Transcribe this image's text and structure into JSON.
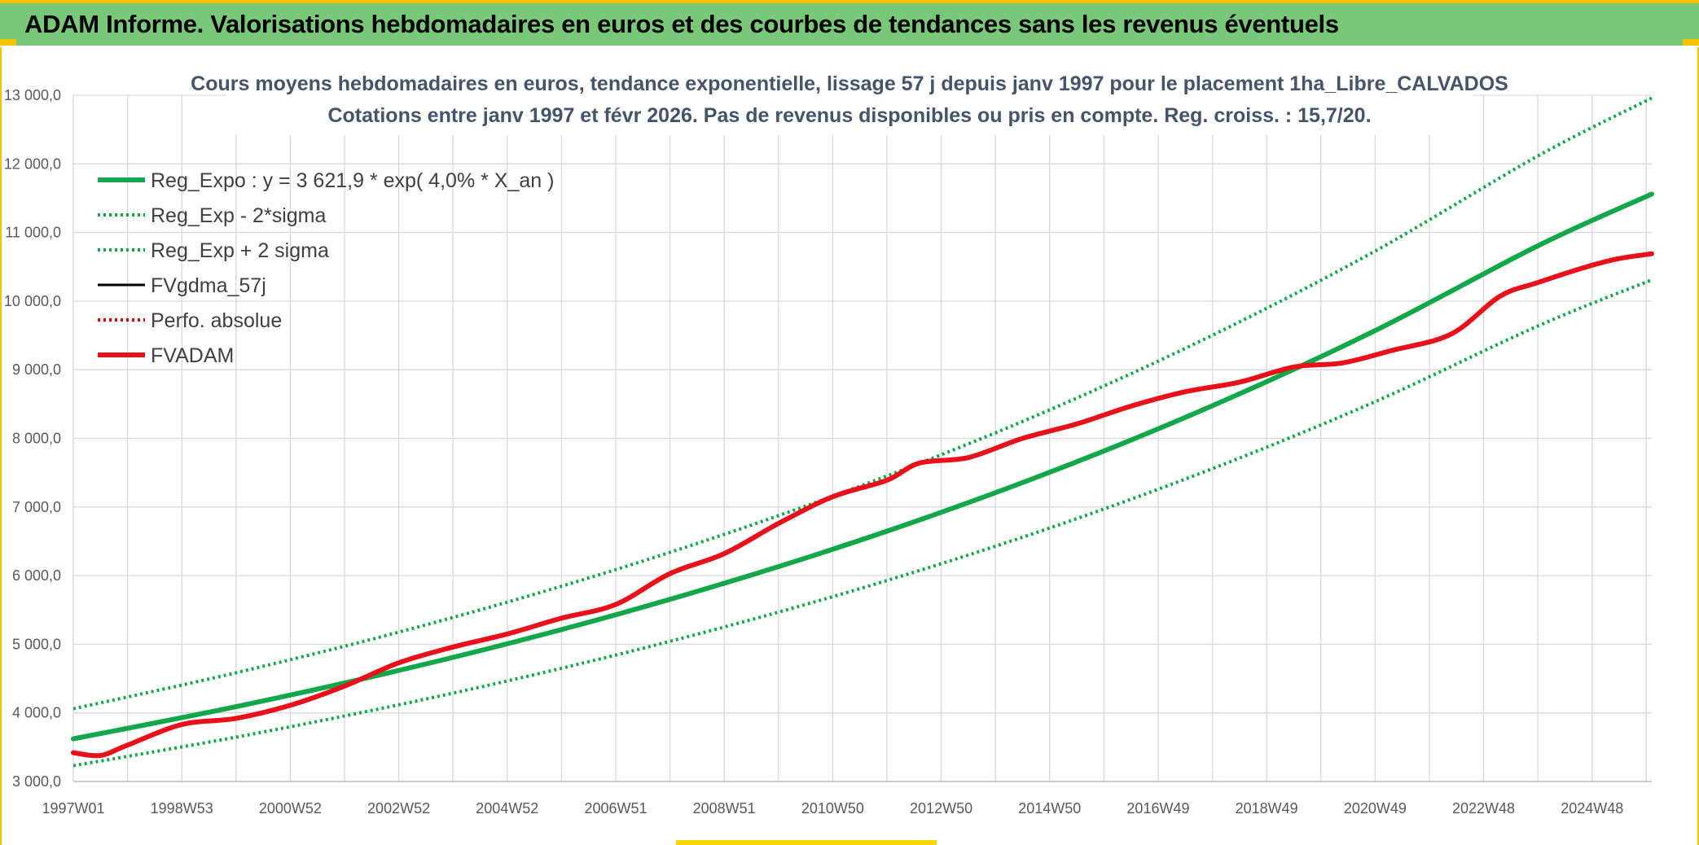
{
  "banner": {
    "title": "ADAM Informe. Valorisations hebdomadaires en euros et des courbes de tendances sans les revenus éventuels"
  },
  "chart_data": {
    "type": "line",
    "title": "Cours moyens hebdomadaires en euros, tendance exponentielle, lissage 57 j depuis janv 1997 pour le placement 1ha_Libre_CALVADOS",
    "subtitle": "Cotations entre janv 1997 et févr 2026. Pas de revenus disponibles ou pris en compte. Reg. croiss. : 15,7/20.",
    "xlabel": "",
    "ylabel": "",
    "ylim": [
      3000,
      13000
    ],
    "yticks": [
      {
        "value": 3000,
        "label": "3 000,0"
      },
      {
        "value": 4000,
        "label": "4 000,0"
      },
      {
        "value": 5000,
        "label": "5 000,0"
      },
      {
        "value": 6000,
        "label": "6 000,0"
      },
      {
        "value": 7000,
        "label": "7 000,0"
      },
      {
        "value": 8000,
        "label": "8 000,0"
      },
      {
        "value": 9000,
        "label": "9 000,0"
      },
      {
        "value": 10000,
        "label": "10 000,0"
      },
      {
        "value": 11000,
        "label": "11 000,0"
      },
      {
        "value": 12000,
        "label": "12 000,0"
      },
      {
        "value": 13000,
        "label": "13 000,0"
      }
    ],
    "xlim": [
      1997.0,
      2026.1
    ],
    "xticks": [
      {
        "value": 1997.0,
        "label": "1997W01"
      },
      {
        "value": 1999.0,
        "label": "1998W53"
      },
      {
        "value": 2001.0,
        "label": "2000W52"
      },
      {
        "value": 2003.0,
        "label": "2002W52"
      },
      {
        "value": 2005.0,
        "label": "2004W52"
      },
      {
        "value": 2007.0,
        "label": "2006W51"
      },
      {
        "value": 2009.0,
        "label": "2008W51"
      },
      {
        "value": 2011.0,
        "label": "2010W50"
      },
      {
        "value": 2013.0,
        "label": "2012W50"
      },
      {
        "value": 2015.0,
        "label": "2014W50"
      },
      {
        "value": 2017.0,
        "label": "2016W49"
      },
      {
        "value": 2019.0,
        "label": "2018W49"
      },
      {
        "value": 2021.0,
        "label": "2020W49"
      },
      {
        "value": 2023.0,
        "label": "2022W48"
      },
      {
        "value": 2025.0,
        "label": "2024W48"
      }
    ],
    "grid": true,
    "legend_position": "top-left",
    "series": [
      {
        "name": "Reg_Expo : y = 3 621,9 * exp( 4,0% *  X_an )",
        "color": "#12a84a",
        "style": "solid",
        "weight": "thick",
        "x": [
          1997.0,
          2000.0,
          2003.0,
          2006.0,
          2009.0,
          2012.0,
          2015.0,
          2018.0,
          2021.0,
          2024.0,
          2026.1
        ],
        "y": [
          3622,
          4090,
          4618,
          5214,
          5888,
          6648,
          7506,
          8476,
          9570,
          10806,
          11560
        ]
      },
      {
        "name": "Reg_Exp - 2*sigma",
        "color": "#12a84a",
        "style": "dotted",
        "weight": "normal",
        "x": [
          1997.0,
          2000.0,
          2003.0,
          2006.0,
          2009.0,
          2012.0,
          2015.0,
          2018.0,
          2021.0,
          2024.0,
          2026.1
        ],
        "y": [
          3230,
          3647,
          4118,
          4650,
          5251,
          5929,
          6694,
          7559,
          8535,
          9637,
          10310
        ]
      },
      {
        "name": "Reg_Exp + 2 sigma",
        "color": "#12a84a",
        "style": "dotted",
        "weight": "normal",
        "x": [
          1997.0,
          2000.0,
          2003.0,
          2006.0,
          2009.0,
          2012.0,
          2015.0,
          2018.0,
          2021.0,
          2024.0,
          2026.1
        ],
        "y": [
          4060,
          4585,
          5177,
          5846,
          6601,
          7453,
          8415,
          9503,
          10729,
          12115,
          12960
        ]
      },
      {
        "name": "FVgdma_57j",
        "color": "#000000",
        "style": "solid",
        "weight": "normal",
        "x": [],
        "y": []
      },
      {
        "name": "Perfo. absolue",
        "color": "#e00000",
        "style": "dotted",
        "weight": "normal",
        "x": [],
        "y": []
      },
      {
        "name": "FVADAM",
        "color": "#e8101a",
        "style": "solid",
        "weight": "thick",
        "x": [
          1997.0,
          1997.5,
          1998.0,
          1999.0,
          2000.0,
          2001.0,
          2002.0,
          2003.0,
          2004.0,
          2005.0,
          2006.0,
          2007.0,
          2008.0,
          2009.0,
          2010.0,
          2011.0,
          2012.0,
          2012.6,
          2013.5,
          2014.5,
          2015.5,
          2016.5,
          2017.5,
          2018.5,
          2019.5,
          2020.4,
          2021.3,
          2022.4,
          2023.3,
          2024.0,
          2024.9,
          2025.5,
          2026.1
        ],
        "y": [
          3420,
          3380,
          3530,
          3830,
          3920,
          4110,
          4390,
          4730,
          4960,
          5150,
          5380,
          5580,
          6030,
          6320,
          6760,
          7150,
          7390,
          7640,
          7720,
          8000,
          8210,
          8470,
          8680,
          8820,
          9040,
          9100,
          9280,
          9520,
          10070,
          10270,
          10500,
          10620,
          10690
        ]
      }
    ]
  }
}
